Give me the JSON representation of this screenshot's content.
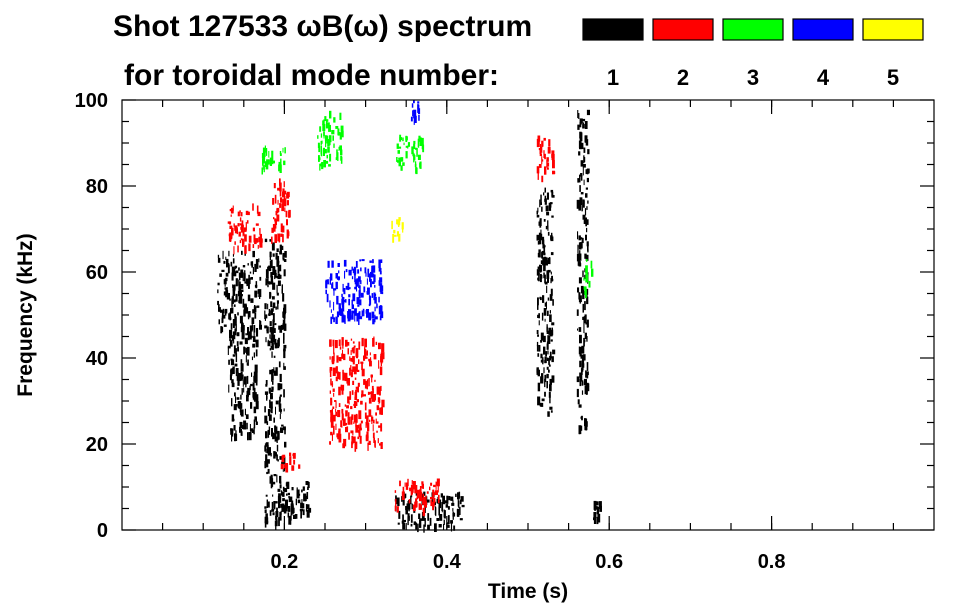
{
  "chart_data": {
    "type": "heatmap",
    "title_line1": "Shot 127533 ωB(ω) spectrum",
    "title_line2": "for toroidal mode number:",
    "xlabel": "Time (s)",
    "ylabel": "Frequency (kHz)",
    "xlim": [
      0.0,
      1.0
    ],
    "ylim": [
      0,
      100
    ],
    "xticks": [
      {
        "value": 0.2,
        "label": "0.2"
      },
      {
        "value": 0.4,
        "label": "0.4"
      },
      {
        "value": 0.6,
        "label": "0.6"
      },
      {
        "value": 0.8,
        "label": "0.8"
      }
    ],
    "yticks": [
      {
        "value": 0,
        "label": "0"
      },
      {
        "value": 20,
        "label": "20"
      },
      {
        "value": 40,
        "label": "40"
      },
      {
        "value": 60,
        "label": "60"
      },
      {
        "value": 80,
        "label": "80"
      },
      {
        "value": 100,
        "label": "100"
      }
    ],
    "legend_placement": "top-right",
    "legend": [
      {
        "label": "1",
        "color": "#000000"
      },
      {
        "label": "2",
        "color": "#ff0000"
      },
      {
        "label": "3",
        "color": "#00ff00"
      },
      {
        "label": "4",
        "color": "#0000ff"
      },
      {
        "label": "5",
        "color": "#ffff00"
      }
    ],
    "mode_colors": {
      "1": "#000000",
      "2": "#ff0000",
      "3": "#00ff00",
      "4": "#0000ff",
      "5": "#ffff00"
    },
    "regions": [
      {
        "mode": "1",
        "t": [
          0.117,
          0.17
        ],
        "f": [
          47,
          65
        ]
      },
      {
        "mode": "1",
        "t": [
          0.13,
          0.165
        ],
        "f": [
          22,
          47
        ]
      },
      {
        "mode": "1",
        "t": [
          0.175,
          0.2
        ],
        "f": [
          2,
          68
        ]
      },
      {
        "mode": "1",
        "t": [
          0.195,
          0.23
        ],
        "f": [
          3,
          12
        ]
      },
      {
        "mode": "1",
        "t": [
          0.335,
          0.42
        ],
        "f": [
          1,
          9
        ]
      },
      {
        "mode": "1",
        "t": [
          0.51,
          0.53
        ],
        "f": [
          27,
          80
        ]
      },
      {
        "mode": "1",
        "t": [
          0.56,
          0.573
        ],
        "f": [
          22,
          100
        ]
      },
      {
        "mode": "1",
        "t": [
          0.578,
          0.588
        ],
        "f": [
          2,
          7
        ]
      },
      {
        "mode": "2",
        "t": [
          0.13,
          0.17
        ],
        "f": [
          66,
          76
        ]
      },
      {
        "mode": "2",
        "t": [
          0.183,
          0.205
        ],
        "f": [
          68,
          82
        ]
      },
      {
        "mode": "2",
        "t": [
          0.255,
          0.32
        ],
        "f": [
          20,
          45
        ]
      },
      {
        "mode": "2",
        "t": [
          0.195,
          0.225
        ],
        "f": [
          15,
          18
        ]
      },
      {
        "mode": "2",
        "t": [
          0.335,
          0.39
        ],
        "f": [
          5,
          12
        ]
      },
      {
        "mode": "2",
        "t": [
          0.51,
          0.53
        ],
        "f": [
          82,
          92
        ]
      },
      {
        "mode": "3",
        "t": [
          0.17,
          0.2
        ],
        "f": [
          84,
          90
        ]
      },
      {
        "mode": "3",
        "t": [
          0.24,
          0.27
        ],
        "f": [
          85,
          98
        ]
      },
      {
        "mode": "3",
        "t": [
          0.335,
          0.37
        ],
        "f": [
          84,
          92
        ]
      },
      {
        "mode": "3",
        "t": [
          0.568,
          0.578
        ],
        "f": [
          55,
          63
        ]
      },
      {
        "mode": "4",
        "t": [
          0.25,
          0.32
        ],
        "f": [
          49,
          63
        ]
      },
      {
        "mode": "4",
        "t": [
          0.355,
          0.365
        ],
        "f": [
          96,
          100
        ]
      },
      {
        "mode": "5",
        "t": [
          0.33,
          0.345
        ],
        "f": [
          68,
          73
        ]
      }
    ]
  }
}
